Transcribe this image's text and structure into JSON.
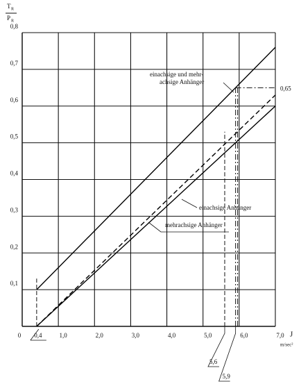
{
  "chart_data": {
    "type": "line",
    "ylabel": {
      "numerator": "T",
      "denominator": "P",
      "subscript": "R"
    },
    "xlabel": "J",
    "xunit": "m/sec²",
    "xlim": [
      0,
      7
    ],
    "ylim": [
      0,
      0.8
    ],
    "xticks": [
      0,
      {
        "value": 1,
        "label": "1,0"
      },
      {
        "value": 2,
        "label": "2,0"
      },
      {
        "value": 3,
        "label": "3,0"
      },
      {
        "value": 4,
        "label": "4,0"
      },
      {
        "value": 5,
        "label": "5,0"
      },
      {
        "value": 6,
        "label": "6,0"
      },
      {
        "value": 7,
        "label": "7,0"
      }
    ],
    "yticks": [
      {
        "value": 0.1,
        "label": "0,1"
      },
      {
        "value": 0.2,
        "label": "0,2"
      },
      {
        "value": 0.3,
        "label": "0,3"
      },
      {
        "value": 0.4,
        "label": "0,4"
      },
      {
        "value": 0.5,
        "label": "0,5"
      },
      {
        "value": 0.6,
        "label": "0,6"
      },
      {
        "value": 0.7,
        "label": "0,7"
      },
      {
        "value": 0.8,
        "label": "0,8"
      }
    ],
    "grid": true,
    "series": [
      {
        "name": [
          "einachsige und mehr-",
          "achsige Anhänger"
        ],
        "color": "#000000",
        "style": "solid",
        "x": [
          0.4,
          7.0
        ],
        "values": [
          0.1,
          0.76
        ]
      },
      {
        "name": [
          "einachsige Anhänger"
        ],
        "color": "#000000",
        "style": "dashed",
        "x": [
          0.4,
          7.0
        ],
        "values": [
          0,
          0.63
        ]
      },
      {
        "name": [
          "mehrachsige Anhänger"
        ],
        "color": "#000000",
        "style": "solid",
        "x": [
          0.4,
          7.0
        ],
        "values": [
          0,
          0.6
        ]
      }
    ],
    "annotations": [
      {
        "x": 0.4,
        "y": 0.13,
        "label": "0,4"
      },
      {
        "x": 5.6,
        "y": 0.53,
        "label": "5,6"
      },
      {
        "x": 5.9,
        "y": 0.65,
        "label": "5,9"
      }
    ],
    "hline": {
      "value": 0.65,
      "label": "0,65"
    }
  }
}
